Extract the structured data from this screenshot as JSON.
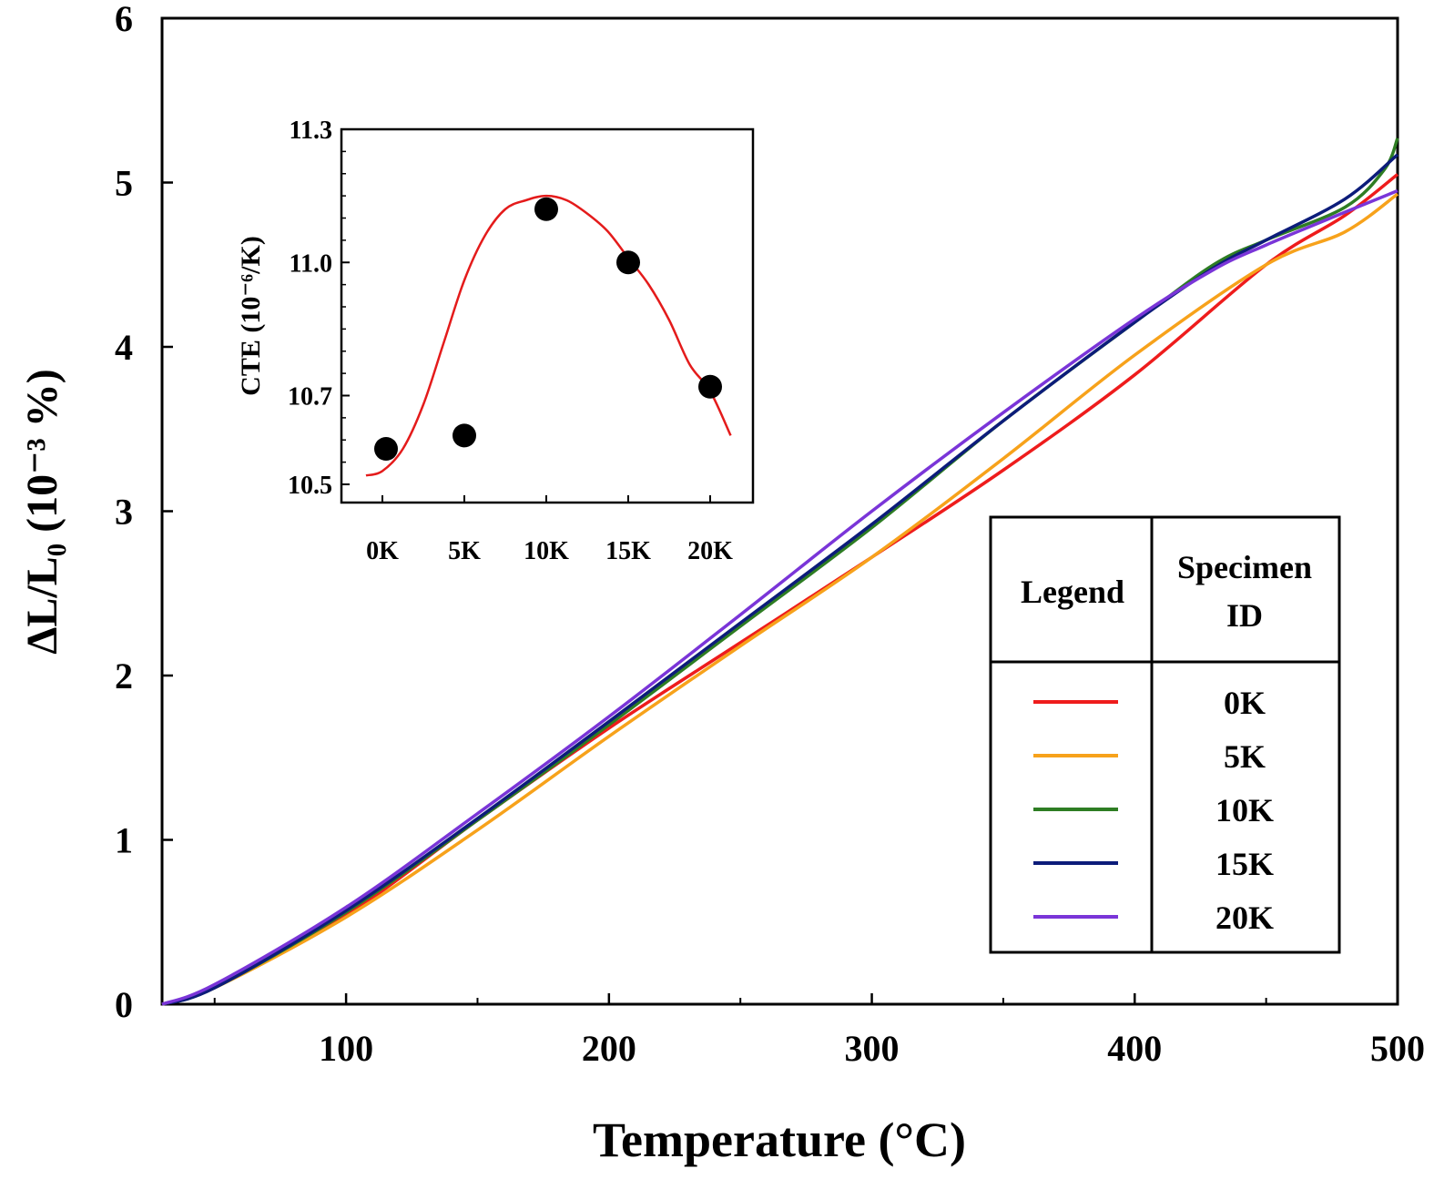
{
  "chart_data": [
    {
      "type": "line",
      "xlabel": "Temperature (°C)",
      "ylabel": "ΔL/L₀ (10⁻³ %)",
      "xlim": [
        30,
        500
      ],
      "ylim": [
        0,
        6
      ],
      "x_ticks": [
        100,
        200,
        300,
        400,
        500
      ],
      "y_ticks": [
        0,
        1,
        2,
        3,
        4,
        5,
        6
      ],
      "x_tick_labels": [
        "100",
        "200",
        "300",
        "400",
        "500"
      ],
      "y_tick_labels": [
        "0",
        "1",
        "2",
        "3",
        "4",
        "5",
        "6"
      ],
      "legend": {
        "position": "bottom-right",
        "header_legend": "Legend",
        "header_specimen_line1": "Specimen",
        "header_specimen_line2": "ID"
      },
      "series": [
        {
          "name": "0K",
          "color": "#ee1c1c",
          "x": [
            30,
            50,
            100,
            150,
            200,
            250,
            300,
            350,
            400,
            450,
            480,
            500
          ],
          "y": [
            0,
            0.1,
            0.54,
            1.12,
            1.68,
            2.2,
            2.72,
            3.25,
            3.83,
            4.5,
            4.8,
            5.05
          ]
        },
        {
          "name": "5K",
          "color": "#f7a21b",
          "x": [
            30,
            50,
            100,
            150,
            200,
            250,
            300,
            350,
            400,
            450,
            480,
            500
          ],
          "y": [
            0,
            0.1,
            0.53,
            1.06,
            1.63,
            2.18,
            2.72,
            3.32,
            3.95,
            4.5,
            4.7,
            4.93
          ]
        },
        {
          "name": "10K",
          "color": "#2e7d23",
          "x": [
            30,
            50,
            100,
            150,
            200,
            250,
            300,
            350,
            400,
            430,
            450,
            480,
            495,
            500
          ],
          "y": [
            0,
            0.1,
            0.56,
            1.12,
            1.7,
            2.3,
            2.9,
            3.55,
            4.15,
            4.5,
            4.65,
            4.85,
            5.08,
            5.27
          ]
        },
        {
          "name": "15K",
          "color": "#0c1c7a",
          "x": [
            30,
            50,
            100,
            150,
            200,
            250,
            300,
            350,
            400,
            430,
            450,
            480,
            500
          ],
          "y": [
            0,
            0.1,
            0.57,
            1.13,
            1.72,
            2.32,
            2.92,
            3.55,
            4.15,
            4.48,
            4.65,
            4.9,
            5.17
          ]
        },
        {
          "name": "20K",
          "color": "#7a35d8",
          "x": [
            30,
            50,
            100,
            150,
            200,
            250,
            300,
            350,
            400,
            430,
            450,
            480,
            500
          ],
          "y": [
            0,
            0.12,
            0.59,
            1.16,
            1.75,
            2.37,
            3.0,
            3.6,
            4.17,
            4.47,
            4.62,
            4.82,
            4.95
          ]
        }
      ]
    },
    {
      "type": "scatter",
      "xlabel": "",
      "ylabel": "CTE (10⁻⁶/K)",
      "categories": [
        "0K",
        "5K",
        "10K",
        "15K",
        "20K"
      ],
      "ylim": [
        10.5,
        11.3
      ],
      "y_ticks": [
        10.5,
        10.7,
        11.0,
        11.3
      ],
      "y_tick_labels": [
        "10.5",
        "10.7",
        "11.0",
        "11.3"
      ],
      "points": [
        10.58,
        10.61,
        11.12,
        11.0,
        10.72
      ],
      "fit": {
        "type": "line",
        "color": "#e41b1b",
        "x": [
          -0.2,
          0,
          0.25,
          0.5,
          0.75,
          1.0,
          1.25,
          1.5,
          1.75,
          2.0,
          2.25,
          2.5,
          2.75,
          3.0,
          3.25,
          3.5,
          3.75,
          4.0,
          4.25
        ],
        "y": [
          10.52,
          10.53,
          10.58,
          10.68,
          10.82,
          10.96,
          11.06,
          11.12,
          11.14,
          11.15,
          11.14,
          11.11,
          11.07,
          11.01,
          10.95,
          10.87,
          10.77,
          10.71,
          10.61
        ]
      }
    }
  ]
}
